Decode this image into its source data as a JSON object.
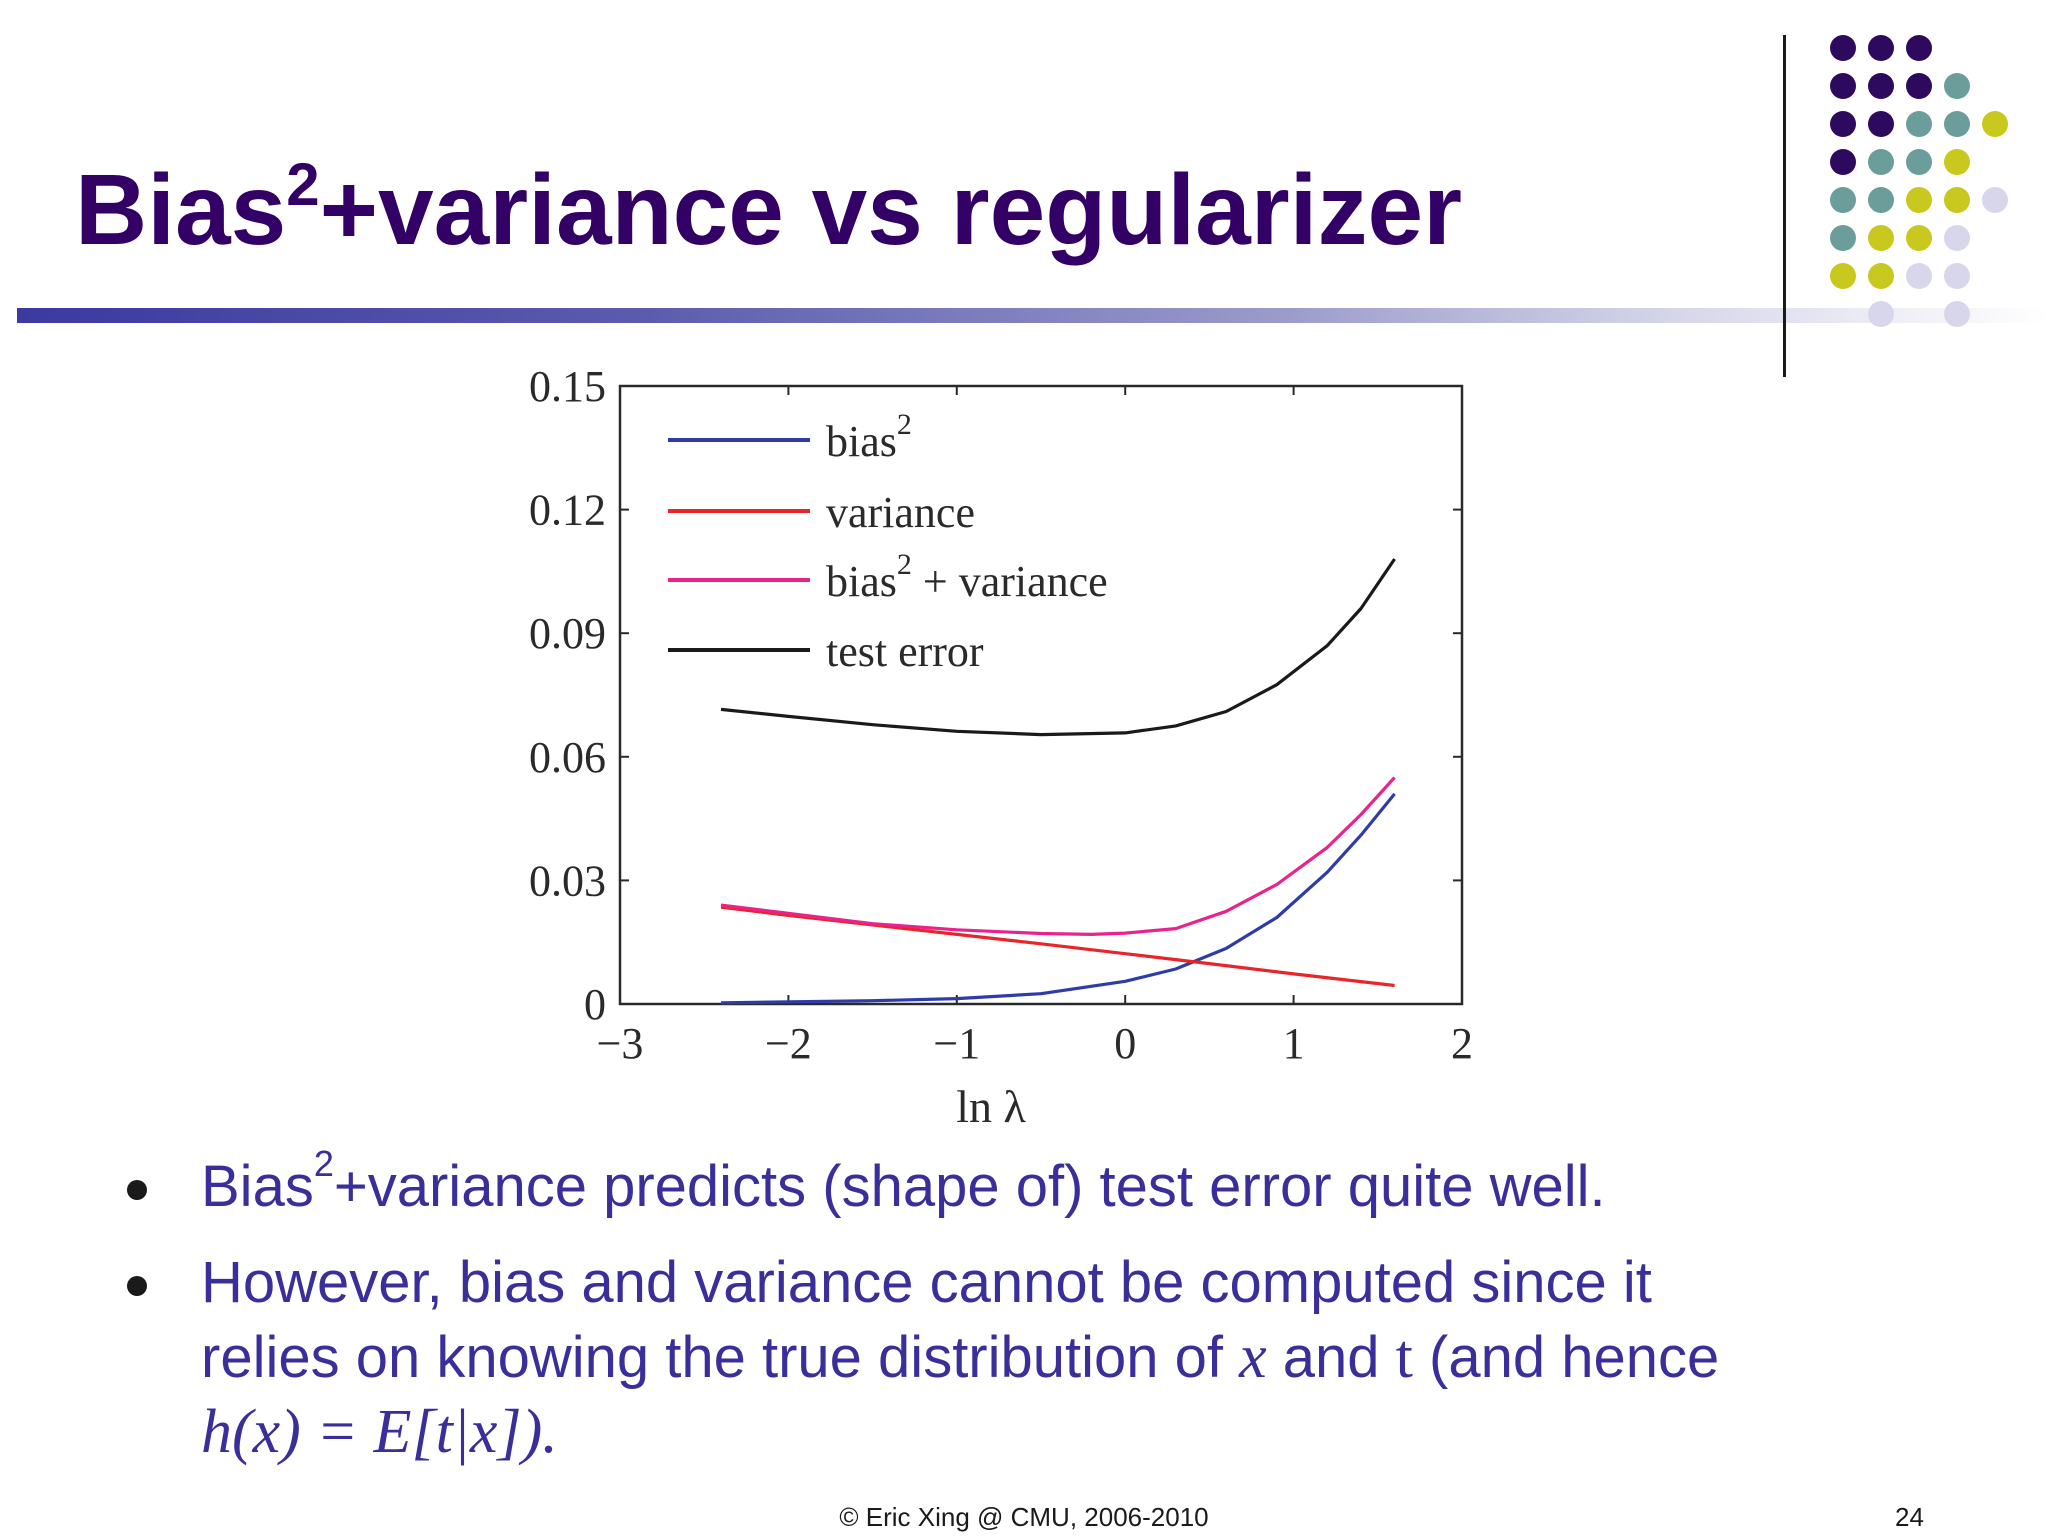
{
  "slide": {
    "title_prefix": "Bias",
    "title_sup": "2",
    "title_suffix": "+variance vs regularizer",
    "footer": "© Eric Xing @ CMU, 2006-2010",
    "page_number": "24"
  },
  "bullets": [
    {
      "prefix": "Bias",
      "sup": "2",
      "suffix": "+variance predicts (shape of) test error quite well."
    },
    {
      "line1": "However, bias and variance cannot be computed since it",
      "line2_a": "relies on knowing the true distribution of ",
      "line2_x": "x",
      "line2_b": " and ",
      "line2_t": "t",
      "line2_c": " (and hence",
      "line3": "h(x) = E[t|x])."
    }
  ],
  "decor": {
    "dot_colors": {
      "purple": "#2e0a5e",
      "teal": "#6b9e9a",
      "olive": "#c8c81e",
      "lavender": "#d8d6ea"
    },
    "dot_rows": [
      [
        "purple",
        "purple",
        "purple",
        null,
        null
      ],
      [
        "purple",
        "purple",
        "purple",
        "teal",
        null
      ],
      [
        "purple",
        "purple",
        "teal",
        "teal",
        "olive"
      ],
      [
        "purple",
        "teal",
        "teal",
        "olive",
        null
      ],
      [
        "teal",
        "teal",
        "olive",
        "olive",
        "lavender"
      ],
      [
        "teal",
        "olive",
        "olive",
        "lavender",
        null
      ],
      [
        "olive",
        "olive",
        "lavender",
        "lavender",
        null
      ],
      [
        null,
        "lavender",
        null,
        "lavender",
        null
      ]
    ]
  },
  "chart_data": {
    "type": "line",
    "xlabel": "ln λ",
    "ylabel": "",
    "xlim": [
      -3,
      2
    ],
    "ylim": [
      0,
      0.15
    ],
    "xticks": [
      -3,
      -2,
      -1,
      0,
      1,
      2
    ],
    "xtick_labels": [
      "−3",
      "−2",
      "−1",
      "0",
      "1",
      "2"
    ],
    "yticks": [
      0,
      0.03,
      0.06,
      0.09,
      0.12,
      0.15
    ],
    "ytick_labels": [
      "0",
      "0.03",
      "0.06",
      "0.09",
      "0.12",
      "0.15"
    ],
    "grid": false,
    "legend_position": "top-left",
    "series": [
      {
        "name": "bias",
        "name_sup": "2",
        "color": "#2e3ca8",
        "x": [
          -2.4,
          -2.0,
          -1.5,
          -1.0,
          -0.5,
          0.0,
          0.3,
          0.6,
          0.9,
          1.2,
          1.4,
          1.6
        ],
        "y": [
          0.0003,
          0.0005,
          0.0008,
          0.0013,
          0.0025,
          0.0055,
          0.0085,
          0.0135,
          0.021,
          0.032,
          0.041,
          0.051
        ]
      },
      {
        "name": "variance",
        "name_sup": "",
        "color": "#e8262a",
        "x": [
          -2.4,
          -2.0,
          -1.5,
          -1.0,
          -0.5,
          0.0,
          0.5,
          1.0,
          1.6
        ],
        "y": [
          0.0235,
          0.0215,
          0.0192,
          0.0169,
          0.0146,
          0.0122,
          0.0098,
          0.0073,
          0.0045
        ]
      },
      {
        "name": "bias",
        "name_sup": "2",
        "name_suffix": " + variance",
        "color": "#e8248c",
        "x": [
          -2.4,
          -2.0,
          -1.5,
          -1.0,
          -0.5,
          -0.2,
          0.0,
          0.3,
          0.6,
          0.9,
          1.2,
          1.4,
          1.6
        ],
        "y": [
          0.024,
          0.022,
          0.0195,
          0.018,
          0.0171,
          0.0169,
          0.0172,
          0.0183,
          0.0225,
          0.029,
          0.038,
          0.046,
          0.055
        ]
      },
      {
        "name": "test error",
        "name_sup": "",
        "color": "#1a1a1a",
        "x": [
          -2.4,
          -2.0,
          -1.5,
          -1.0,
          -0.5,
          0.0,
          0.3,
          0.6,
          0.9,
          1.2,
          1.4,
          1.6
        ],
        "y": [
          0.0715,
          0.0698,
          0.0678,
          0.0662,
          0.0654,
          0.0658,
          0.0675,
          0.071,
          0.0775,
          0.087,
          0.096,
          0.108
        ]
      }
    ]
  }
}
